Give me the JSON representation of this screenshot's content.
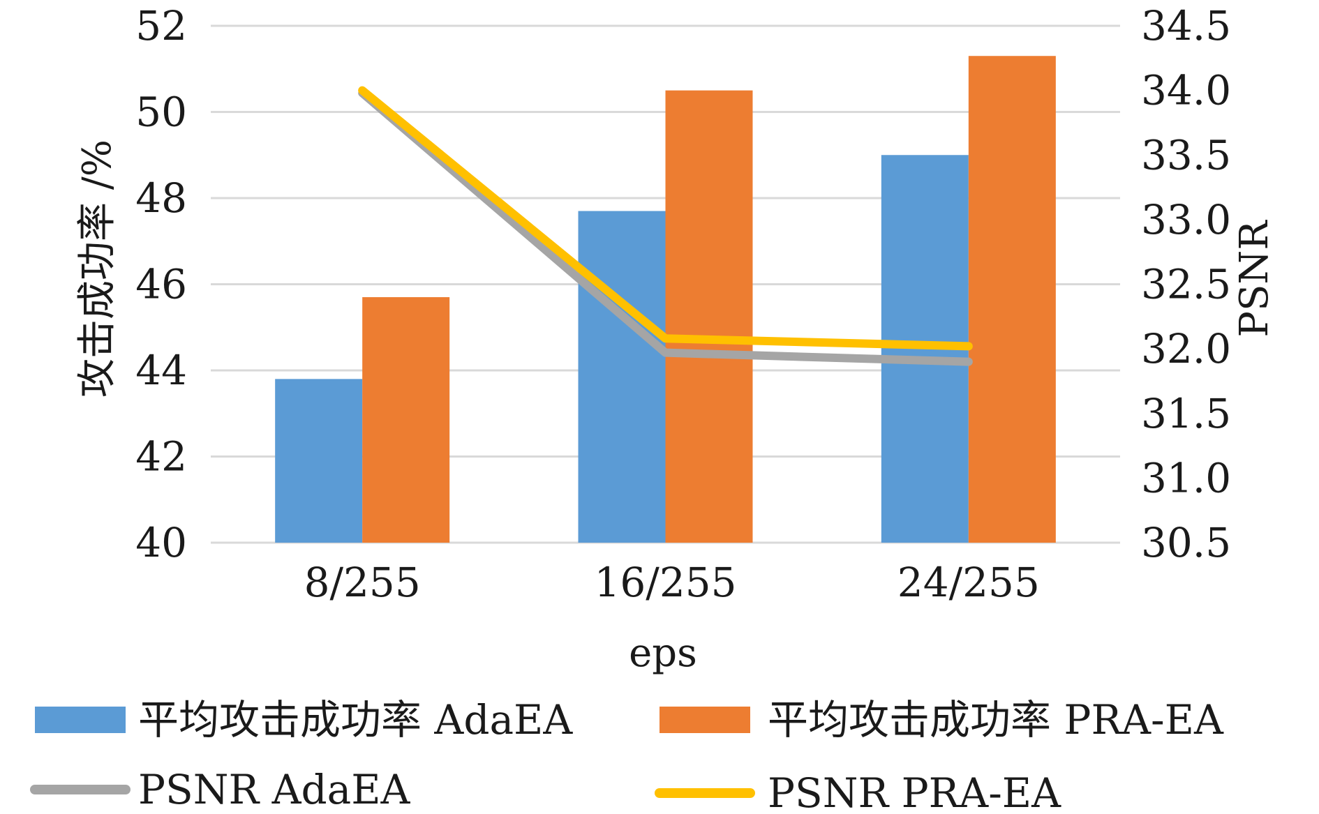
{
  "chart_data": {
    "type": "bar",
    "categories": [
      "8/255",
      "16/255",
      "24/255"
    ],
    "xlabel": "eps",
    "ylabel_left": "攻击成功率 /%",
    "ylabel_right": "PSNR",
    "ylim_left": [
      40,
      52
    ],
    "ylim_right": [
      30.5,
      34.5
    ],
    "yticks_left": [
      "40",
      "42",
      "44",
      "46",
      "48",
      "50",
      "52"
    ],
    "yticks_right": [
      "30.5",
      "31.0",
      "31.5",
      "32.0",
      "32.5",
      "33.0",
      "33.5",
      "34.0",
      "34.5"
    ],
    "grid": true,
    "legend_position": "bottom",
    "bar_series": [
      {
        "name": "平均攻击成功率 AdaEA",
        "color": "#5b9bd5",
        "values": [
          43.8,
          47.7,
          49.0
        ]
      },
      {
        "name": "平均攻击成功率 PRA-EA",
        "color": "#ed7d31",
        "values": [
          45.7,
          50.5,
          51.3
        ]
      }
    ],
    "line_series": [
      {
        "name": "PSNR AdaEA",
        "color": "#a5a5a5",
        "values": [
          33.98,
          31.97,
          31.9
        ]
      },
      {
        "name": "PSNR PRA-EA",
        "color": "#ffc000",
        "values": [
          34.0,
          32.08,
          32.02
        ]
      }
    ]
  }
}
